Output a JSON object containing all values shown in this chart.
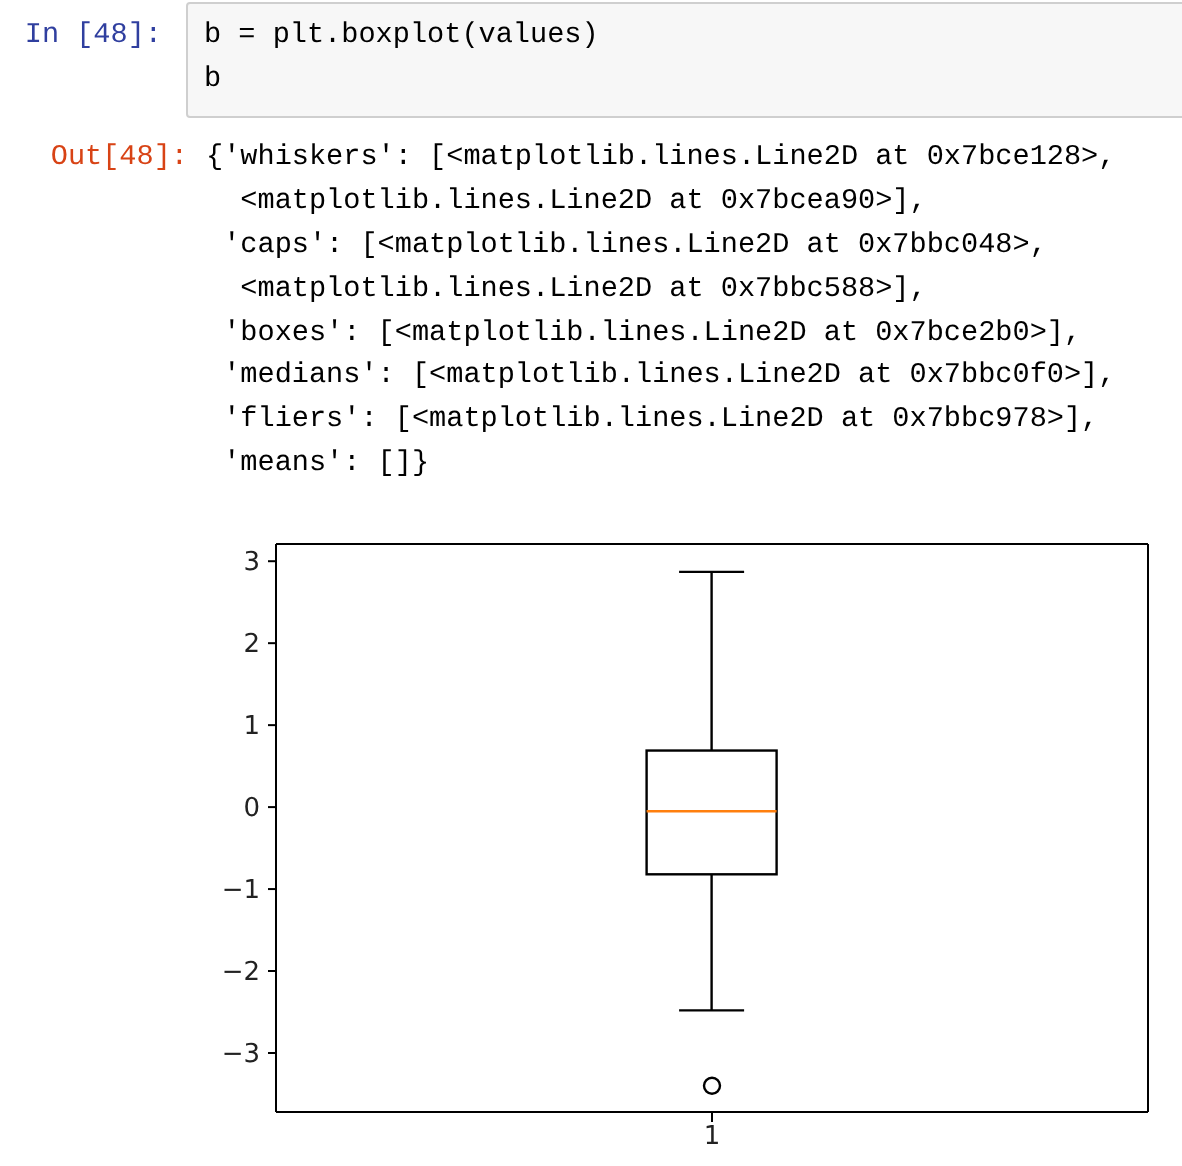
{
  "chart_data": {
    "type": "box",
    "categories": [
      "1"
    ],
    "boxes": [
      {
        "low": -2.48,
        "q1": -0.82,
        "median": -0.05,
        "q3": 0.69,
        "high": 2.87,
        "outliers": [
          -3.4
        ]
      }
    ],
    "color": "#000000",
    "marker": "circle",
    "ylim": [
      -3.72,
      3.21
    ],
    "yticks": [
      -3,
      -2,
      -1,
      0,
      1,
      2,
      3
    ],
    "annotations": [
      "In [48]:",
      "b = plt.boxplot(values)\nb",
      "Out[48]:",
      "{'whiskers': [<matplotlib.lines.Line2D at 0x7bce128>,\n  <matplotlib.lines.Line2D at 0x7bcea90>],\n 'caps': [<matplotlib.lines.Line2D at 0x7bbc048>,\n  <matplotlib.lines.Line2D at 0x7bbc588>],\n 'boxes': [<matplotlib.lines.Line2D at 0x7bce2b0>],\n 'medians': [<matplotlib.lines.Line2D at 0x7bbc0f0>],\n 'fliers': [<matplotlib.lines.Line2D at 0x7bbc978>],\n 'means': []}"
    ]
  }
}
